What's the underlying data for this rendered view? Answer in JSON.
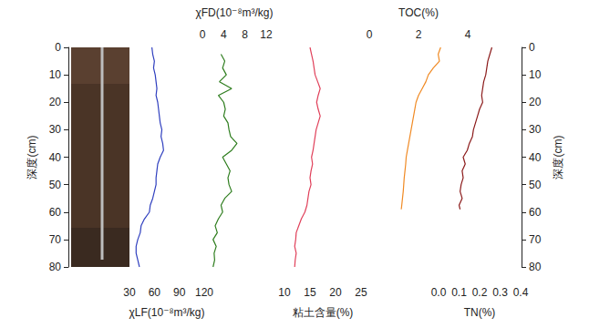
{
  "chart_data": {
    "type": "line",
    "ylabel": "深度(cm)",
    "ylim": [
      0,
      80
    ],
    "yticks": [
      0,
      10,
      20,
      30,
      40,
      50,
      60,
      70,
      80
    ],
    "series": [
      {
        "xlabel": "χLF(10⁻⁸m³/kg)",
        "color": "#2f3fbf",
        "xlim": [
          30,
          120
        ],
        "xticks": [
          30,
          60,
          90,
          120
        ],
        "y": [
          0,
          2.5,
          5,
          7.5,
          10,
          12.5,
          15,
          17.5,
          20,
          22.5,
          25,
          27.5,
          30,
          32.5,
          35,
          37.5,
          40,
          42.5,
          45,
          47.5,
          50,
          52.5,
          55,
          57.5,
          60,
          62.5,
          65,
          67.5,
          70,
          72.5,
          75,
          77.5,
          80
        ],
        "x": [
          57,
          58,
          60,
          59,
          61,
          62,
          63,
          62,
          64,
          65,
          66,
          67,
          69,
          68,
          70,
          71,
          67,
          64,
          63,
          62,
          62,
          60,
          58,
          55,
          54,
          48,
          44,
          43,
          40,
          38,
          38,
          40,
          42
        ]
      },
      {
        "xlabel": "χFD(10⁻⁸m³/kg)",
        "color": "#2e7d1e",
        "xlim": [
          0,
          12
        ],
        "xticks": [
          0,
          4,
          8,
          12
        ],
        "y": [
          2.5,
          5,
          7.5,
          10,
          12.5,
          15,
          17.5,
          20,
          22.5,
          25,
          27.5,
          30,
          32.5,
          35,
          37.5,
          40,
          42.5,
          45,
          47.5,
          50,
          52.5,
          55,
          57.5,
          60,
          62.5,
          65,
          67.5,
          70,
          72.5,
          75,
          77.5,
          80
        ],
        "x": [
          3.5,
          4.2,
          3.8,
          4.5,
          3.2,
          5.5,
          3.0,
          4.0,
          4.3,
          4.0,
          4.8,
          5.0,
          5.3,
          6.5,
          5.5,
          3.8,
          4.5,
          5.2,
          4.8,
          5.0,
          5.5,
          4.2,
          3.5,
          3.8,
          3.0,
          2.4,
          2.8,
          2.0,
          2.6,
          2.2,
          2.3,
          2.0
        ]
      },
      {
        "xlabel": "粘土含量(%)",
        "color": "#e0405a",
        "xlim": [
          10,
          25
        ],
        "xticks": [
          10,
          15,
          20,
          25
        ],
        "y": [
          0,
          2.5,
          5,
          7.5,
          10,
          12.5,
          15,
          17.5,
          20,
          22.5,
          25,
          27.5,
          30,
          32.5,
          35,
          37.5,
          40,
          42.5,
          45,
          47.5,
          50,
          52.5,
          55,
          57.5,
          60,
          62.5,
          65,
          67.5,
          70,
          72.5,
          75,
          77.5,
          80
        ],
        "x": [
          15.0,
          15.3,
          15.6,
          15.8,
          16.0,
          16.5,
          17.0,
          16.6,
          16.3,
          16.6,
          17.0,
          16.6,
          16.2,
          16.0,
          15.8,
          15.6,
          15.3,
          15.5,
          15.2,
          15.0,
          15.2,
          14.8,
          14.6,
          14.4,
          14.0,
          13.3,
          12.8,
          12.3,
          12.2,
          12.0,
          12.3,
          12.1,
          12.0
        ]
      },
      {
        "xlabel": "TOC(%)",
        "color": "#f08a24",
        "xlim": [
          0,
          4
        ],
        "xticks": [
          0,
          2,
          4
        ],
        "y": [
          0,
          2.5,
          5,
          7.5,
          10,
          12.5,
          15,
          17.5,
          20,
          22.5,
          25,
          27.5,
          30,
          32.5,
          35,
          37.5,
          40,
          42.5,
          45,
          47.5,
          50,
          52.5,
          55,
          57.5,
          59
        ],
        "x": [
          2.9,
          2.8,
          2.85,
          2.6,
          2.4,
          2.3,
          2.15,
          2.0,
          1.9,
          1.85,
          1.8,
          1.75,
          1.7,
          1.65,
          1.6,
          1.55,
          1.5,
          1.48,
          1.45,
          1.42,
          1.4,
          1.38,
          1.35,
          1.32,
          1.3
        ]
      },
      {
        "xlabel": "TN(%)",
        "color": "#8b1a1a",
        "xlim": [
          0,
          0.4
        ],
        "xticks": [
          {
            "value": 0,
            "label": "0.0"
          },
          0.1,
          0.2,
          0.3,
          0.4
        ],
        "y": [
          0,
          2.5,
          5,
          7.5,
          10,
          12.5,
          15,
          17.5,
          20,
          22.5,
          25,
          27.5,
          30,
          32.5,
          35,
          37.5,
          40,
          42.5,
          45,
          47.5,
          50,
          52.5,
          55,
          57.5,
          59
        ],
        "x": [
          0.26,
          0.25,
          0.24,
          0.235,
          0.23,
          0.22,
          0.215,
          0.21,
          0.215,
          0.2,
          0.19,
          0.18,
          0.17,
          0.165,
          0.15,
          0.14,
          0.12,
          0.13,
          0.115,
          0.12,
          0.11,
          0.105,
          0.115,
          0.1,
          0.105
        ]
      }
    ]
  }
}
